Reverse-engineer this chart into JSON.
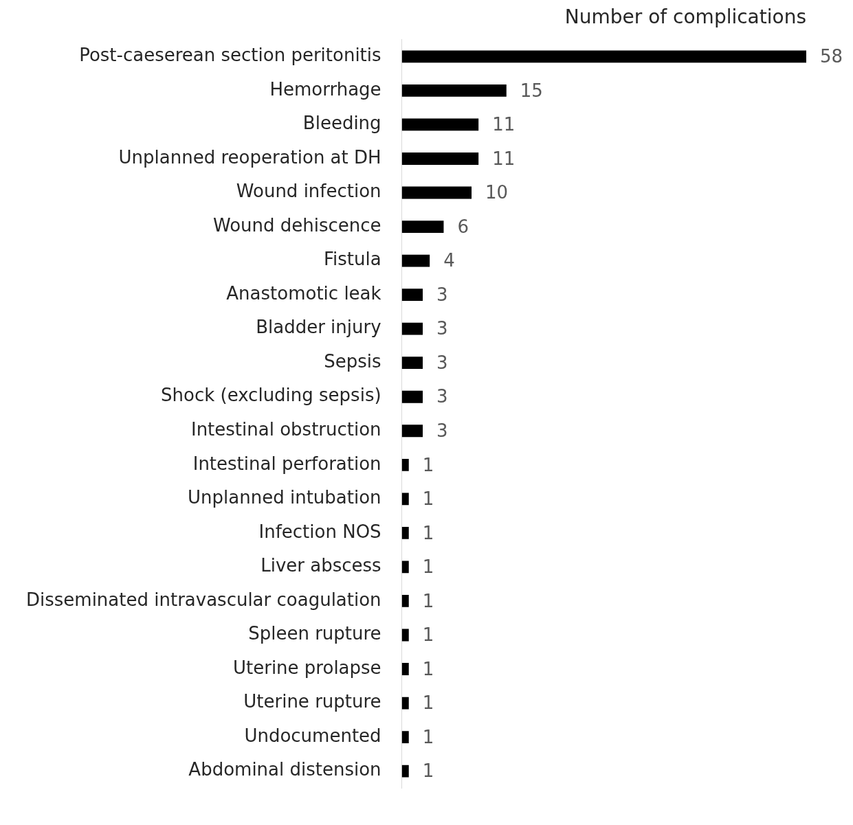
{
  "chart_data": {
    "type": "bar",
    "orientation": "horizontal",
    "title": "Number of complications",
    "categories": [
      "Post-caeserean section peritonitis",
      "Hemorrhage",
      "Bleeding",
      "Unplanned reoperation at DH",
      "Wound infection",
      "Wound dehiscence",
      "Fistula",
      "Anastomotic leak",
      "Bladder injury",
      "Sepsis",
      "Shock (excluding sepsis)",
      "Intestinal obstruction",
      "Intestinal perforation",
      "Unplanned intubation",
      "Infection NOS",
      "Liver abscess",
      "Disseminated intravascular coagulation",
      "Spleen rupture",
      "Uterine prolapse",
      "Uterine rupture",
      "Undocumented",
      "Abdominal distension"
    ],
    "values": [
      58,
      15,
      11,
      11,
      10,
      6,
      4,
      3,
      3,
      3,
      3,
      3,
      1,
      1,
      1,
      1,
      1,
      1,
      1,
      1,
      1,
      1
    ],
    "color": "#000000",
    "data_labels": true
  }
}
